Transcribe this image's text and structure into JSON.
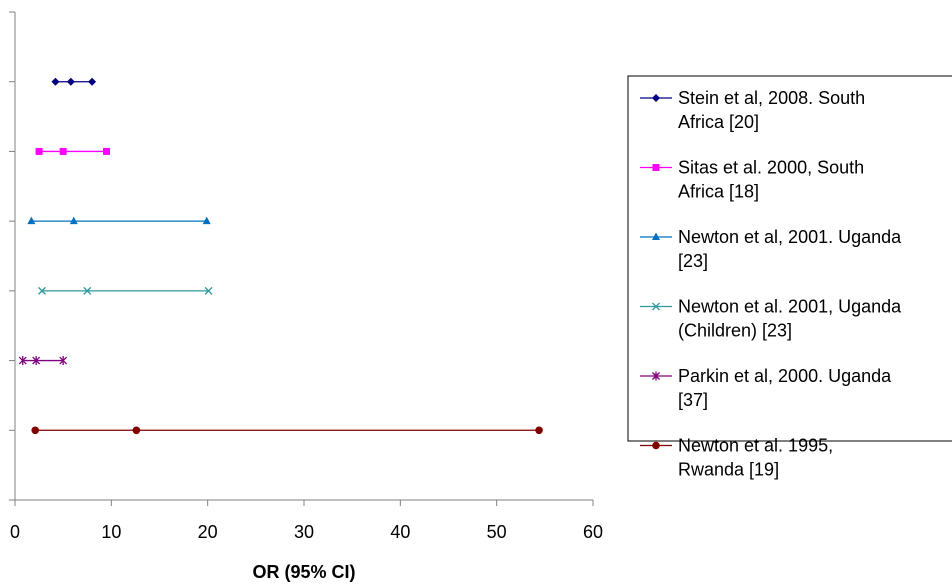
{
  "chart_data": {
    "type": "scatter",
    "title": "",
    "xlabel": "OR (95% CI)",
    "ylabel": "",
    "xlim": [
      0,
      60
    ],
    "xticks": [
      0,
      10,
      20,
      30,
      40,
      50,
      60
    ],
    "grid": false,
    "legend_position": "right",
    "series": [
      {
        "name": "Stein et al, 2008. South Africa [20]",
        "lower": 4.2,
        "or": 5.8,
        "upper": 8.0,
        "color": "#000080",
        "marker": "diamond"
      },
      {
        "name": "Sitas et al. 2000, South Africa [18]",
        "lower": 2.5,
        "or": 5.0,
        "upper": 9.5,
        "color": "#ff00ff",
        "marker": "square"
      },
      {
        "name": "Newton et al, 2001. Uganda [23]",
        "lower": 1.7,
        "or": 6.1,
        "upper": 19.9,
        "color": "#0070c0",
        "marker": "triangle"
      },
      {
        "name": "Newton et al. 2001, Uganda (Children) [23]",
        "lower": 2.8,
        "or": 7.5,
        "upper": 20.1,
        "color": "#339999",
        "marker": "x"
      },
      {
        "name": "Parkin et al, 2000. Uganda [37]",
        "lower": 0.8,
        "or": 2.2,
        "upper": 5.0,
        "color": "#800080",
        "marker": "star"
      },
      {
        "name": "Newton et al. 1995, Rwanda [19]",
        "lower": 2.1,
        "or": 12.6,
        "upper": 54.4,
        "color": "#800000",
        "marker": "circle"
      }
    ]
  },
  "legend": {
    "items": [
      {
        "line1": "Stein et al, 2008. South",
        "line2": "Africa [20]"
      },
      {
        "line1": "Sitas et al. 2000, South",
        "line2": "Africa [18]"
      },
      {
        "line1": "Newton et al, 2001. Uganda",
        "line2": "[23]"
      },
      {
        "line1": "Newton et al. 2001, Uganda",
        "line2": "(Children) [23]"
      },
      {
        "line1": "Parkin et al, 2000. Uganda",
        "line2": "[37]"
      },
      {
        "line1": "Newton et al. 1995,",
        "line2": "Rwanda [19]"
      }
    ]
  }
}
